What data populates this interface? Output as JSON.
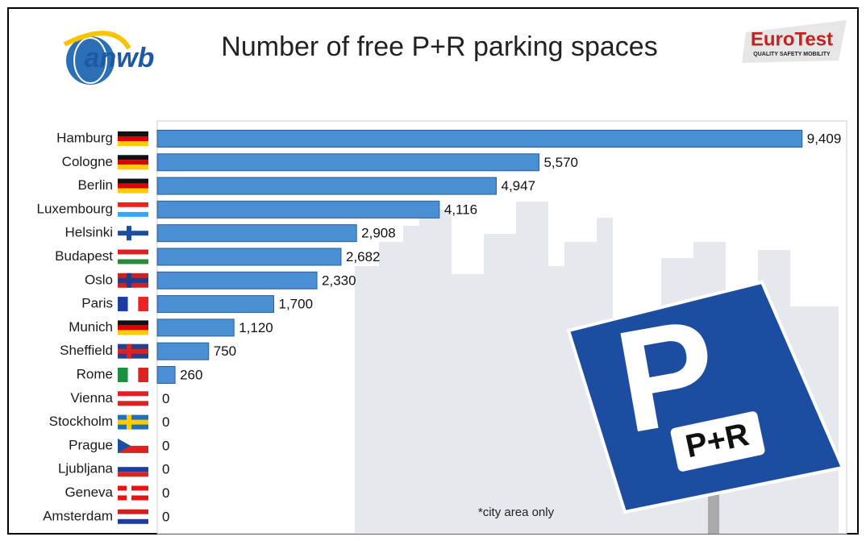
{
  "header": {
    "logo": "anwb",
    "title": "Number of free P+R parking spaces",
    "brand": "EuroTest",
    "brand_tagline": "QUALITY SAFETY MOBILITY"
  },
  "sign": {
    "letter": "P",
    "label": "P+R"
  },
  "chart_data": {
    "type": "bar",
    "orientation": "horizontal",
    "categories": [
      "Hamburg",
      "Cologne",
      "Berlin",
      "Luxembourg",
      "Helsinki",
      "Budapest",
      "Oslo",
      "Paris",
      "Munich",
      "Sheffield",
      "Rome",
      "Vienna",
      "Stockholm",
      "Prague",
      "Ljubljana",
      "Geneva",
      "Amsterdam"
    ],
    "values": [
      9409,
      5570,
      4947,
      4116,
      2908,
      2682,
      2330,
      1700,
      1120,
      750,
      260,
      0,
      0,
      0,
      0,
      0,
      0
    ],
    "value_labels": [
      "9,409",
      "5,570",
      "4,947",
      "4,116",
      "2,908",
      "2,682",
      "2,330",
      "1,700",
      "1,120",
      "750",
      "260",
      "0",
      "0",
      "0",
      "0",
      "0",
      "0"
    ],
    "color": "#4a8fd3",
    "xlim": [
      0,
      10000
    ],
    "note": "*city area only"
  }
}
